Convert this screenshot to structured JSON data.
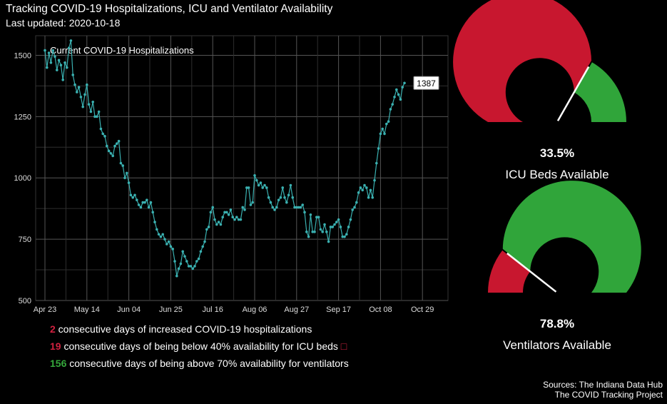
{
  "title": "Tracking COVID-19 Hospitalizations, ICU and Ventilator Availability",
  "subtitle": "Last updated: 2020-10-18",
  "chart_data": [
    {
      "type": "line",
      "title": "Current COVID-19 Hospitalizations",
      "x_tick_labels": [
        "Apr 23",
        "May 14",
        "Jun 04",
        "Jun 25",
        "Jul 16",
        "Aug 06",
        "Aug 27",
        "Sep 17",
        "Oct 08",
        "Oct 29"
      ],
      "y_ticks": [
        500,
        750,
        1000,
        1250,
        1500
      ],
      "ylim": [
        500,
        1580
      ],
      "xlim_days": [
        -2,
        191
      ],
      "start_date": "2020-04-23",
      "end_label": "1387",
      "grid": true,
      "series_color": "#3ab0b0",
      "values": [
        1520,
        1450,
        1510,
        1470,
        1520,
        1495,
        1440,
        1480,
        1460,
        1400,
        1470,
        1450,
        1530,
        1560,
        1420,
        1380,
        1350,
        1370,
        1330,
        1290,
        1340,
        1380,
        1300,
        1270,
        1310,
        1250,
        1250,
        1270,
        1200,
        1180,
        1170,
        1130,
        1110,
        1100,
        1090,
        1130,
        1140,
        1150,
        1060,
        1050,
        1000,
        1020,
        980,
        930,
        920,
        930,
        910,
        890,
        880,
        900,
        900,
        910,
        880,
        900,
        860,
        820,
        790,
        770,
        760,
        770,
        750,
        730,
        740,
        720,
        710,
        660,
        600,
        630,
        650,
        700,
        680,
        660,
        640,
        640,
        630,
        640,
        660,
        670,
        700,
        720,
        740,
        790,
        800,
        860,
        880,
        830,
        810,
        820,
        810,
        840,
        860,
        860,
        850,
        870,
        840,
        830,
        840,
        830,
        830,
        880,
        870,
        960,
        960,
        890,
        900,
        1010,
        990,
        970,
        980,
        960,
        970,
        960,
        920,
        900,
        880,
        870,
        880,
        910,
        920,
        960,
        920,
        900,
        930,
        970,
        920,
        880,
        880,
        880,
        880,
        890,
        860,
        780,
        760,
        850,
        780,
        780,
        840,
        840,
        790,
        780,
        810,
        780,
        740,
        800,
        800,
        810,
        820,
        830,
        800,
        760,
        760,
        770,
        800,
        830,
        870,
        880,
        900,
        940,
        960,
        950,
        970,
        960,
        920,
        950,
        920,
        990,
        1060,
        1120,
        1180,
        1200,
        1180,
        1220,
        1230,
        1280,
        1300,
        1330,
        1360,
        1340,
        1320,
        1370,
        1387
      ]
    },
    {
      "type": "gauge",
      "label": "ICU Beds Available",
      "value_label": "33.5%",
      "value": 0.335,
      "colors": {
        "unavailable": "#c8172f",
        "available": "#30a53a",
        "needle": "#ffffff"
      }
    },
    {
      "type": "gauge",
      "label": "Ventilators Available",
      "value_label": "78.8%",
      "value": 0.788,
      "colors": {
        "unavailable": "#c8172f",
        "available": "#30a53a",
        "needle": "#ffffff"
      }
    }
  ],
  "stats": [
    {
      "num": "2",
      "text": " consecutive days of increased COVID-19 hospitalizations",
      "color": "red"
    },
    {
      "num": "19",
      "text": " consecutive days of being below 40% availability for ICU beds",
      "color": "red",
      "glyph": "□"
    },
    {
      "num": "156",
      "text": " consecutive days of being above 70% availability for ventilators",
      "color": "green"
    }
  ],
  "sources": {
    "line1": "Sources: The Indiana Data Hub",
    "line2": "The COVID Tracking Project"
  }
}
